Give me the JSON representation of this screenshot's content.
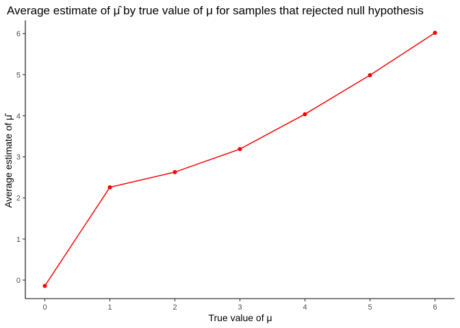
{
  "chart_data": {
    "type": "line",
    "title": "Average estimate of μ̂ by true value of μ for samples that rejected null hypothesis",
    "xlabel": "True value of μ",
    "ylabel": "Average estimate of μ̂",
    "x": [
      0,
      1,
      2,
      3,
      4,
      5,
      6
    ],
    "series": [
      {
        "values": [
          -0.14,
          2.26,
          2.63,
          3.19,
          4.04,
          4.99,
          6.02
        ]
      }
    ],
    "xlim": [
      -0.3,
      6.3
    ],
    "ylim": [
      -0.45,
      6.32
    ],
    "xticks": [
      "0",
      "1",
      "2",
      "3",
      "4",
      "5",
      "6"
    ],
    "yticks": [
      "0",
      "1",
      "2",
      "3",
      "4",
      "5",
      "6"
    ],
    "color": "#ff0000",
    "grid": false,
    "legend": "none"
  }
}
